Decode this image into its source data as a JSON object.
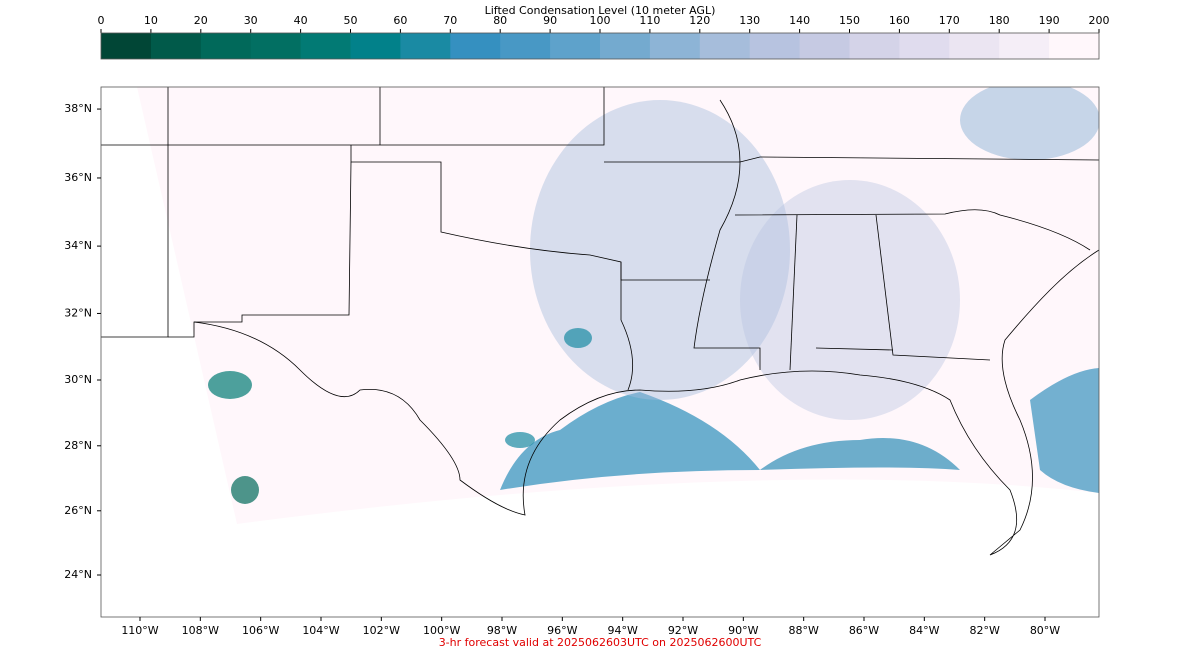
{
  "colorbar": {
    "title": "Lifted Condensation Level (10 meter AGL)",
    "ticks": [
      0,
      10,
      20,
      30,
      40,
      50,
      60,
      70,
      80,
      90,
      100,
      110,
      120,
      130,
      140,
      150,
      160,
      170,
      180,
      190,
      200
    ],
    "colors": [
      "#014636",
      "#015a4a",
      "#01695a",
      "#026f62",
      "#027a74",
      "#02818a",
      "#1a8aa3",
      "#3590c0",
      "#4898c5",
      "#5ea2cb",
      "#74aacf",
      "#8db4d6",
      "#a6bddb",
      "#b7c3e0",
      "#c6cae3",
      "#d4d3e8",
      "#e0dcee",
      "#ebe5f2",
      "#f5eef7",
      "#fff7fb"
    ]
  },
  "map": {
    "lat_ticks": [
      {
        "value": 38,
        "label": "38°N"
      },
      {
        "value": 36,
        "label": "36°N"
      },
      {
        "value": 34,
        "label": "34°N"
      },
      {
        "value": 32,
        "label": "32°N"
      },
      {
        "value": 30,
        "label": "30°N"
      },
      {
        "value": 28,
        "label": "28°N"
      },
      {
        "value": 26,
        "label": "26°N"
      },
      {
        "value": 24,
        "label": "24°N"
      }
    ],
    "lon_ticks": [
      {
        "value": -110,
        "label": "110°W"
      },
      {
        "value": -108,
        "label": "108°W"
      },
      {
        "value": -106,
        "label": "106°W"
      },
      {
        "value": -104,
        "label": "104°W"
      },
      {
        "value": -102,
        "label": "102°W"
      },
      {
        "value": -100,
        "label": "100°W"
      },
      {
        "value": -98,
        "label": "98°W"
      },
      {
        "value": -96,
        "label": "96°W"
      },
      {
        "value": -94,
        "label": "94°W"
      },
      {
        "value": -92,
        "label": "92°W"
      },
      {
        "value": -90,
        "label": "90°W"
      },
      {
        "value": -88,
        "label": "88°W"
      },
      {
        "value": -86,
        "label": "86°W"
      },
      {
        "value": -84,
        "label": "84°W"
      },
      {
        "value": -82,
        "label": "82°W"
      },
      {
        "value": -80,
        "label": "80°W"
      }
    ]
  },
  "footer": "3-hr forecast valid at 2025062603UTC on 2025062600UTC"
}
